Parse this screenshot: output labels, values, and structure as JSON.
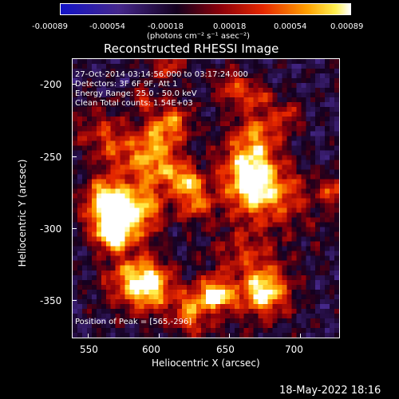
{
  "colorbar": {
    "tick_labels": [
      "-0.00089",
      "-0.00054",
      "-0.00018",
      "0.00018",
      "0.00054",
      "0.00089"
    ],
    "unit_label": "(photons cm⁻² s⁻¹ asec⁻²)"
  },
  "title": "Reconstructed RHESSI Image",
  "annotations": {
    "line1": "27-Oct-2014 03:14:56.000 to 03:17:24.000",
    "line2": "Detectors: 3F 6F 9F, Att 1",
    "line3": "Energy Range: 25.0 - 50.0 keV",
    "line4": "Clean     Total counts: 1.54E+03",
    "peak": "Position of Peak = [565,-296]"
  },
  "axes": {
    "xlabel": "Heliocentric X (arcsec)",
    "ylabel": "Heliocentric Y (arcsec)",
    "xticks": [
      "550",
      "600",
      "650",
      "700"
    ],
    "yticks": [
      "-200",
      "-250",
      "-300",
      "-350"
    ]
  },
  "footer": {
    "date": "18-May-2022 18:16"
  },
  "chart_data": {
    "type": "heatmap",
    "title": "Reconstructed RHESSI Image",
    "xlabel": "Heliocentric X (arcsec)",
    "ylabel": "Heliocentric Y (arcsec)",
    "xlim": [
      538,
      727
    ],
    "ylim": [
      -374,
      -179
    ],
    "colormap": "purple-red-yellow-white",
    "peak": [
      565,
      -296
    ],
    "color_range": [
      -0.00089,
      0.00089
    ]
  }
}
